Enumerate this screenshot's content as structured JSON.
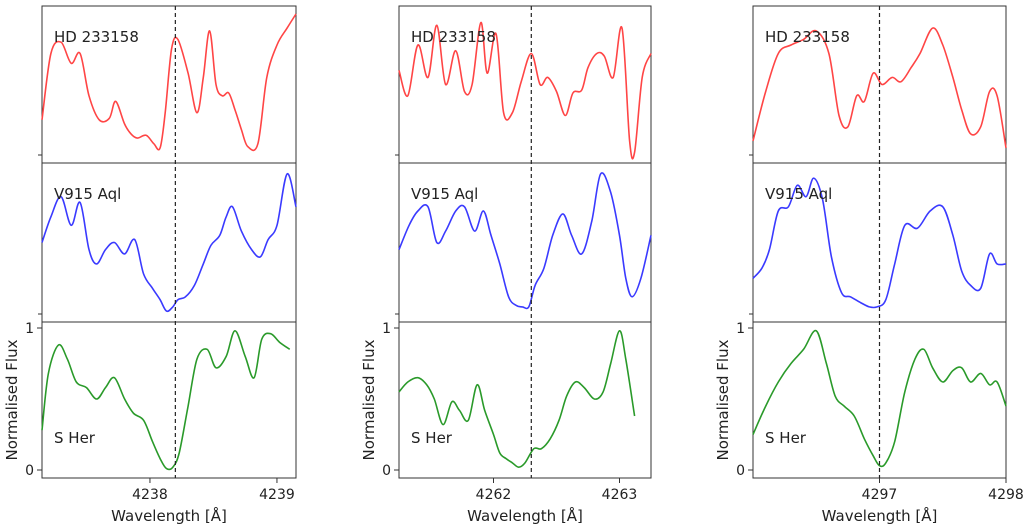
{
  "chart_data": [
    {
      "type": "line",
      "xlabel": "Wavelength [Å]",
      "ylabel": "Normalised Flux",
      "xlim": [
        4237.15,
        4239.15
      ],
      "vline_x": 4238.2,
      "x_ticks": [
        4238,
        4239
      ],
      "y_ticks_bottom": [
        0,
        1
      ],
      "series": [
        {
          "name": "HD 233158",
          "color": "#ff4545",
          "x": [
            4237.15,
            4237.22,
            4237.3,
            4237.38,
            4237.45,
            4237.52,
            4237.6,
            4237.68,
            4237.73,
            4237.8,
            4237.85,
            4237.9,
            4237.97,
            4238.03,
            4238.08,
            4238.12,
            4238.17,
            4238.22,
            4238.3,
            4238.37,
            4238.42,
            4238.47,
            4238.52,
            4238.57,
            4238.62,
            4238.67,
            4238.72,
            4238.77,
            4238.85,
            4238.92,
            4239.0,
            4239.08,
            4239.15
          ],
          "y": [
            0.25,
            0.72,
            0.8,
            0.65,
            0.72,
            0.42,
            0.25,
            0.26,
            0.38,
            0.22,
            0.15,
            0.12,
            0.14,
            0.08,
            0.05,
            0.3,
            0.75,
            0.82,
            0.58,
            0.3,
            0.55,
            0.88,
            0.5,
            0.42,
            0.44,
            0.32,
            0.18,
            0.06,
            0.08,
            0.55,
            0.78,
            0.9,
            1.0
          ]
        },
        {
          "name": "V915 Aql",
          "color": "#3a3aff",
          "x": [
            4237.15,
            4237.22,
            4237.3,
            4237.38,
            4237.45,
            4237.52,
            4237.58,
            4237.65,
            4237.72,
            4237.8,
            4237.88,
            4237.95,
            4238.02,
            4238.08,
            4238.13,
            4238.18,
            4238.22,
            4238.28,
            4238.35,
            4238.42,
            4238.48,
            4238.55,
            4238.6,
            4238.65,
            4238.72,
            4238.8,
            4238.87,
            4238.93,
            4239.0,
            4239.08,
            4239.15
          ],
          "y": [
            0.5,
            0.68,
            0.82,
            0.62,
            0.78,
            0.45,
            0.35,
            0.45,
            0.5,
            0.42,
            0.52,
            0.28,
            0.18,
            0.1,
            0.02,
            0.05,
            0.1,
            0.12,
            0.2,
            0.35,
            0.48,
            0.55,
            0.68,
            0.75,
            0.58,
            0.45,
            0.4,
            0.52,
            0.62,
            0.98,
            0.75
          ]
        },
        {
          "name": "S Her",
          "color": "#2a9a2a",
          "x": [
            4237.15,
            4237.2,
            4237.28,
            4237.35,
            4237.42,
            4237.5,
            4237.58,
            4237.65,
            4237.72,
            4237.8,
            4237.87,
            4237.95,
            4238.02,
            4238.08,
            4238.13,
            4238.18,
            4238.23,
            4238.3,
            4238.37,
            4238.45,
            4238.52,
            4238.6,
            4238.67,
            4238.75,
            4238.82,
            4238.88,
            4238.95,
            4239.02,
            4239.1
          ],
          "y": [
            0.28,
            0.68,
            0.88,
            0.78,
            0.62,
            0.58,
            0.5,
            0.58,
            0.65,
            0.5,
            0.4,
            0.35,
            0.2,
            0.08,
            0.01,
            0.02,
            0.12,
            0.45,
            0.78,
            0.85,
            0.72,
            0.8,
            0.98,
            0.8,
            0.65,
            0.92,
            0.96,
            0.9,
            0.85
          ]
        }
      ]
    },
    {
      "type": "line",
      "xlabel": "Wavelength [Å]",
      "ylabel": "Normalised Flux",
      "xlim": [
        4261.25,
        4263.25
      ],
      "vline_x": 4262.3,
      "x_ticks": [
        4262,
        4263
      ],
      "y_ticks_bottom": [
        0,
        1
      ],
      "series": [
        {
          "name": "HD 233158",
          "color": "#ff4545",
          "x": [
            4261.25,
            4261.32,
            4261.4,
            4261.48,
            4261.55,
            4261.62,
            4261.7,
            4261.77,
            4261.83,
            4261.9,
            4261.95,
            4262.02,
            4262.08,
            4262.15,
            4262.22,
            4262.3,
            4262.37,
            4262.43,
            4262.5,
            4262.57,
            4262.63,
            4262.7,
            4262.75,
            4262.82,
            4262.88,
            4262.95,
            4263.02,
            4263.08,
            4263.12,
            4263.18,
            4263.25
          ],
          "y": [
            0.6,
            0.42,
            0.78,
            0.55,
            0.92,
            0.5,
            0.74,
            0.45,
            0.5,
            0.94,
            0.58,
            0.86,
            0.3,
            0.3,
            0.52,
            0.72,
            0.5,
            0.55,
            0.45,
            0.28,
            0.44,
            0.46,
            0.62,
            0.72,
            0.7,
            0.55,
            0.9,
            0.1,
            0.02,
            0.55,
            0.72
          ]
        },
        {
          "name": "V915 Aql",
          "color": "#3a3aff",
          "x": [
            4261.25,
            4261.33,
            4261.4,
            4261.48,
            4261.55,
            4261.62,
            4261.7,
            4261.77,
            4261.85,
            4261.92,
            4261.98,
            4262.05,
            4262.12,
            4262.18,
            4262.23,
            4262.28,
            4262.33,
            4262.4,
            4262.47,
            4262.55,
            4262.62,
            4262.7,
            4262.78,
            4262.85,
            4262.93,
            4263.0,
            4263.05,
            4263.1,
            4263.17,
            4263.25
          ],
          "y": [
            0.45,
            0.62,
            0.72,
            0.75,
            0.5,
            0.58,
            0.72,
            0.75,
            0.58,
            0.72,
            0.55,
            0.35,
            0.12,
            0.06,
            0.05,
            0.05,
            0.2,
            0.32,
            0.55,
            0.7,
            0.55,
            0.42,
            0.65,
            0.98,
            0.85,
            0.55,
            0.25,
            0.12,
            0.25,
            0.55
          ]
        },
        {
          "name": "S Her",
          "color": "#2a9a2a",
          "x": [
            4261.25,
            4261.32,
            4261.4,
            4261.47,
            4261.53,
            4261.6,
            4261.67,
            4261.73,
            4261.8,
            4261.87,
            4261.93,
            4262.0,
            4262.05,
            4262.1,
            4262.15,
            4262.2,
            4262.25,
            4262.32,
            4262.38,
            4262.45,
            4262.52,
            4262.58,
            4262.65,
            4262.72,
            4262.8,
            4262.87,
            4262.93,
            4263.0,
            4263.05,
            4263.12
          ],
          "y": [
            0.55,
            0.62,
            0.65,
            0.6,
            0.5,
            0.32,
            0.48,
            0.42,
            0.35,
            0.6,
            0.42,
            0.25,
            0.12,
            0.08,
            0.05,
            0.02,
            0.05,
            0.15,
            0.15,
            0.22,
            0.35,
            0.52,
            0.62,
            0.58,
            0.5,
            0.55,
            0.75,
            0.98,
            0.78,
            0.38
          ]
        }
      ]
    },
    {
      "type": "line",
      "xlabel": "Wavelength [Å]",
      "ylabel": "Normalised Flux",
      "xlim": [
        4296.0,
        4298.0
      ],
      "vline_x": 4297.0,
      "x_ticks": [
        4297,
        4298
      ],
      "y_ticks_bottom": [
        0,
        1
      ],
      "series": [
        {
          "name": "HD 233158",
          "color": "#ff4545",
          "x": [
            4296.0,
            4296.1,
            4296.2,
            4296.3,
            4296.4,
            4296.5,
            4296.6,
            4296.68,
            4296.75,
            4296.82,
            4296.88,
            4296.95,
            4297.02,
            4297.1,
            4297.17,
            4297.25,
            4297.32,
            4297.42,
            4297.5,
            4297.58,
            4297.65,
            4297.72,
            4297.8,
            4297.87,
            4297.93,
            4298.0
          ],
          "y": [
            0.1,
            0.45,
            0.72,
            0.78,
            0.82,
            0.88,
            0.72,
            0.28,
            0.2,
            0.42,
            0.38,
            0.58,
            0.5,
            0.55,
            0.52,
            0.62,
            0.72,
            0.9,
            0.78,
            0.55,
            0.32,
            0.15,
            0.2,
            0.45,
            0.42,
            0.05
          ]
        },
        {
          "name": "V915 Aql",
          "color": "#3a3aff",
          "x": [
            4296.0,
            4296.07,
            4296.13,
            4296.2,
            4296.28,
            4296.35,
            4296.42,
            4296.48,
            4296.55,
            4296.62,
            4296.7,
            4296.77,
            4296.85,
            4296.92,
            4296.98,
            4297.05,
            4297.12,
            4297.2,
            4297.3,
            4297.4,
            4297.5,
            4297.58,
            4297.65,
            4297.72,
            4297.8,
            4297.87,
            4297.93,
            4298.0
          ],
          "y": [
            0.25,
            0.32,
            0.45,
            0.72,
            0.75,
            0.9,
            0.82,
            0.95,
            0.8,
            0.4,
            0.15,
            0.12,
            0.08,
            0.05,
            0.05,
            0.1,
            0.35,
            0.62,
            0.6,
            0.72,
            0.75,
            0.55,
            0.3,
            0.2,
            0.18,
            0.42,
            0.35,
            0.35
          ]
        },
        {
          "name": "S Her",
          "color": "#2a9a2a",
          "x": [
            4296.0,
            4296.1,
            4296.2,
            4296.3,
            4296.4,
            4296.5,
            4296.58,
            4296.65,
            4296.72,
            4296.8,
            4296.88,
            4296.95,
            4297.0,
            4297.05,
            4297.12,
            4297.2,
            4297.28,
            4297.35,
            4297.42,
            4297.5,
            4297.58,
            4297.65,
            4297.72,
            4297.8,
            4297.87,
            4297.93,
            4298.0
          ],
          "y": [
            0.25,
            0.45,
            0.62,
            0.75,
            0.85,
            0.98,
            0.75,
            0.52,
            0.45,
            0.38,
            0.22,
            0.1,
            0.03,
            0.05,
            0.2,
            0.55,
            0.78,
            0.85,
            0.72,
            0.62,
            0.7,
            0.72,
            0.62,
            0.68,
            0.6,
            0.62,
            0.45
          ]
        }
      ]
    }
  ]
}
